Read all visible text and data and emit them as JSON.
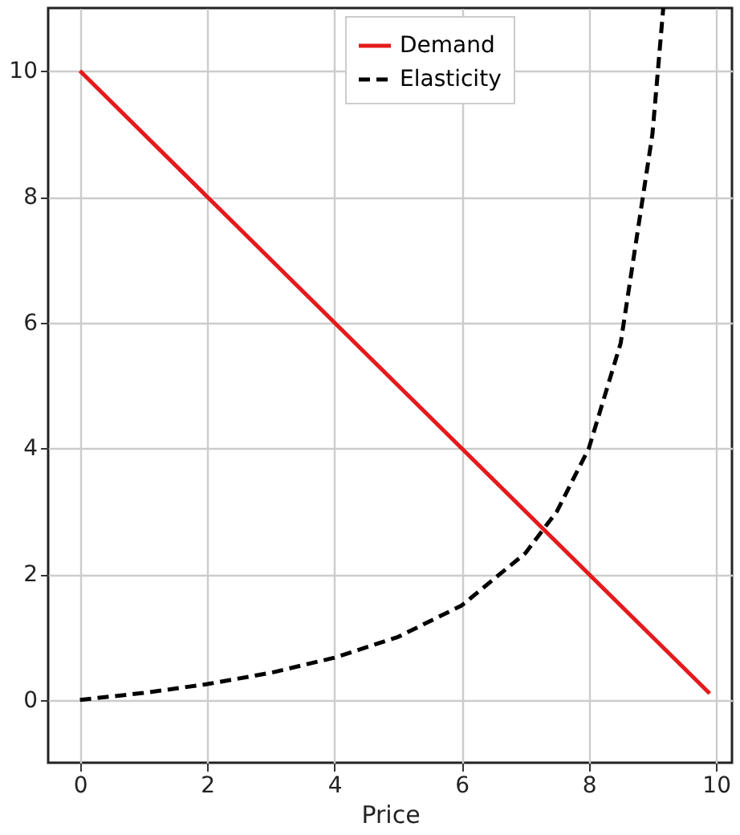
{
  "chart_data": {
    "type": "line",
    "xlabel": "Price",
    "xlim": [
      -0.5,
      10.25
    ],
    "ylim": [
      -1,
      11
    ],
    "xticks": [
      0,
      2,
      4,
      6,
      8,
      10
    ],
    "yticks": [
      0,
      2,
      4,
      6,
      8,
      10
    ],
    "grid": true,
    "legend": "top right",
    "series": [
      {
        "name": "Demand",
        "color": "#e41a1c",
        "line_style": "solid",
        "x": [
          0,
          9.9
        ],
        "values": [
          10,
          0.1
        ]
      },
      {
        "name": "Elasticity",
        "color": "#000000",
        "line_style": "dashed",
        "x": [
          0,
          1,
          2,
          3,
          4,
          5,
          6,
          7,
          7.5,
          8,
          8.5,
          9,
          9.17
        ],
        "values": [
          0,
          0.11,
          0.25,
          0.43,
          0.67,
          1,
          1.5,
          2.33,
          3,
          4,
          5.67,
          9,
          11
        ]
      }
    ]
  }
}
